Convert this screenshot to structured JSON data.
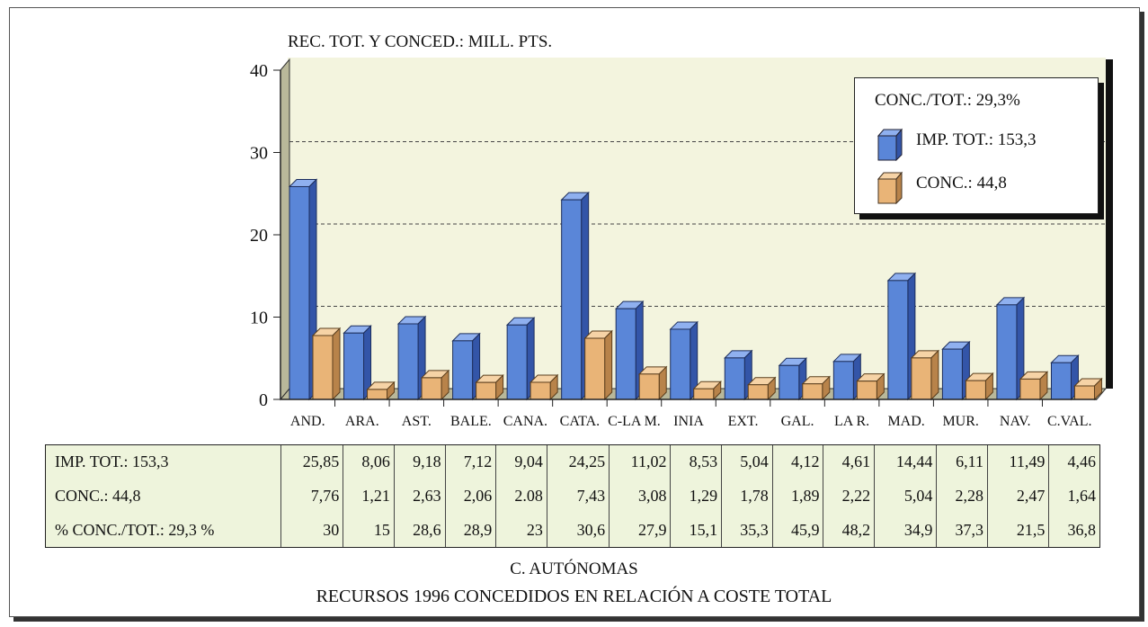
{
  "chart_data": {
    "type": "bar",
    "title": "",
    "ylabel": "REC. TOT. Y CONCED.: MILL. PTS.",
    "xlabel": "C. AUTÓNOMAS",
    "caption": "RECURSOS 1996 CONCEDIDOS EN RELACIÓN A COSTE TOTAL",
    "ylim": [
      0,
      40
    ],
    "yticks": [
      "0",
      "10",
      "20",
      "30",
      "40"
    ],
    "categories": [
      "AND.",
      "ARA.",
      "AST.",
      "BALE.",
      "CANA.",
      "CATA.",
      "C-LA M.",
      "INIA",
      "EXT.",
      "GAL.",
      "LA R.",
      "MAD.",
      "MUR.",
      "NAV.",
      "C.VAL."
    ],
    "series": [
      {
        "name": "IMP. TOT.: 153,3",
        "color": "#5a86d8",
        "values": [
          25.85,
          8.06,
          9.18,
          7.12,
          9.04,
          24.25,
          11.02,
          8.53,
          5.04,
          4.12,
          4.61,
          14.44,
          6.11,
          11.49,
          4.46
        ]
      },
      {
        "name": "CONC.: 44,8",
        "color": "#e9b477",
        "values": [
          7.76,
          1.21,
          2.63,
          2.06,
          2.08,
          7.43,
          3.08,
          1.29,
          1.78,
          1.89,
          2.22,
          5.04,
          2.28,
          2.47,
          1.64
        ]
      }
    ],
    "legend": {
      "title": "CONC./TOT.: 29,3%",
      "placement": "top-right"
    },
    "grid": true,
    "table": {
      "rows": [
        {
          "label": "IMP. TOT.: 153,3",
          "cells": [
            "25,85",
            "8,06",
            "9,18",
            "7,12",
            "9,04",
            "24,25",
            "11,02",
            "8,53",
            "5,04",
            "4,12",
            "4,61",
            "14,44",
            "6,11",
            "11,49",
            "4,46"
          ]
        },
        {
          "label": "CONC.: 44,8",
          "cells": [
            "7,76",
            "1,21",
            "2,63",
            "2,06",
            "2.08",
            "7,43",
            "3,08",
            "1,29",
            "1,78",
            "1,89",
            "2,22",
            "5,04",
            "2,28",
            "2,47",
            "1,64"
          ]
        },
        {
          "label": "% CONC./TOT.: 29,3 %",
          "cells": [
            "30",
            "15",
            "28,6",
            "28,9",
            "23",
            "30,6",
            "27,9",
            "15,1",
            "35,3",
            "45,9",
            "48,2",
            "34,9",
            "37,3",
            "21,5",
            "36,8"
          ]
        }
      ]
    }
  }
}
